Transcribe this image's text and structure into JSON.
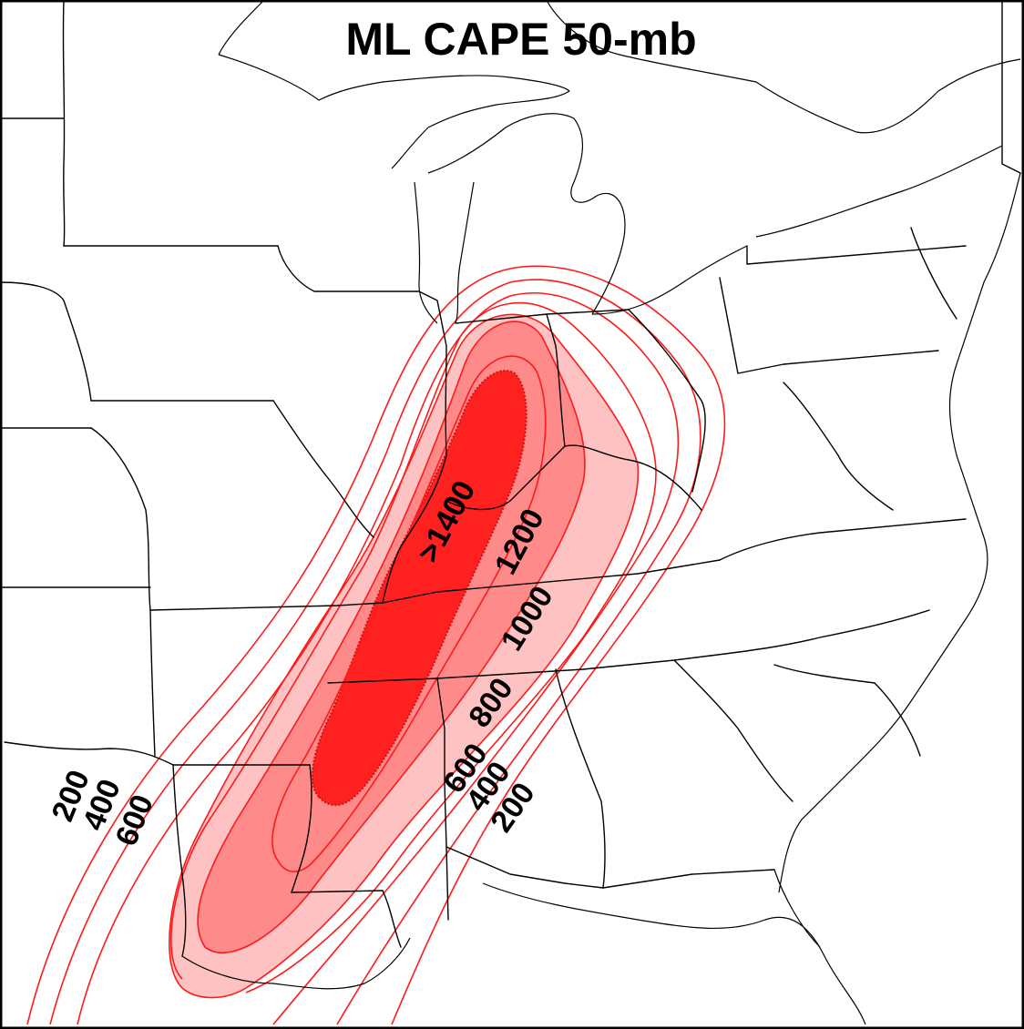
{
  "title": "ML CAPE 50-mb",
  "colors": {
    "fill_1000": "#ffc2c2",
    "fill_1200": "#ff8a8a",
    "fill_1400": "#ff2020",
    "contour": "#ff1a1a",
    "borders": "#000000"
  },
  "contour_labels": {
    "west_200": "200",
    "west_400": "400",
    "west_600": "600",
    "east_600": "600",
    "east_400": "400",
    "east_200": "200",
    "east_800": "800",
    "east_1000": "1000",
    "east_1200": "1200",
    "core": ">1400"
  }
}
